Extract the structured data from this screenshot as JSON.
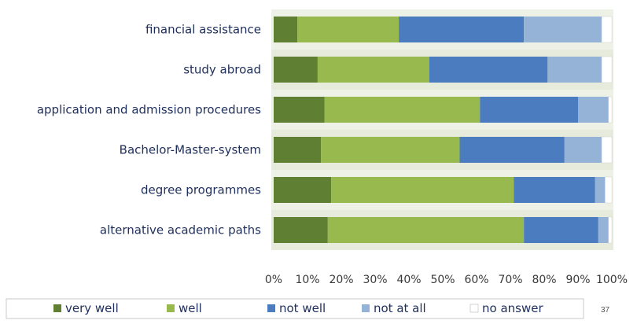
{
  "chart_data": {
    "type": "bar",
    "orientation": "horizontal",
    "stacked": "percent",
    "categories": [
      "financial assistance",
      "study abroad",
      "application and admission procedures",
      "Bachelor-Master-system",
      "degree programmes",
      "alternative academic paths"
    ],
    "series": [
      {
        "name": "very well",
        "color": "#5f7f33",
        "values": [
          7,
          13,
          15,
          14,
          17,
          16
        ]
      },
      {
        "name": "well",
        "color": "#97b94d",
        "values": [
          30,
          33,
          46,
          41,
          54,
          58
        ]
      },
      {
        "name": "not well",
        "color": "#4a7cbf",
        "values": [
          37,
          35,
          29,
          31,
          24,
          22
        ]
      },
      {
        "name": "not at all",
        "color": "#94b3d6",
        "values": [
          23,
          16,
          9,
          11,
          3,
          3
        ]
      },
      {
        "name": "no answer",
        "color": "#ffffff",
        "values": [
          3,
          3,
          1,
          3,
          2,
          1
        ]
      }
    ],
    "x_ticks": [
      "0%",
      "10%",
      "20%",
      "30%",
      "40%",
      "50%",
      "60%",
      "70%",
      "80%",
      "90%",
      "100%"
    ],
    "xlim": [
      0,
      100
    ],
    "title": "",
    "xlabel": "",
    "ylabel": "",
    "legend": "bottom",
    "plot_background": "#eef1e6"
  },
  "page_number": "37"
}
